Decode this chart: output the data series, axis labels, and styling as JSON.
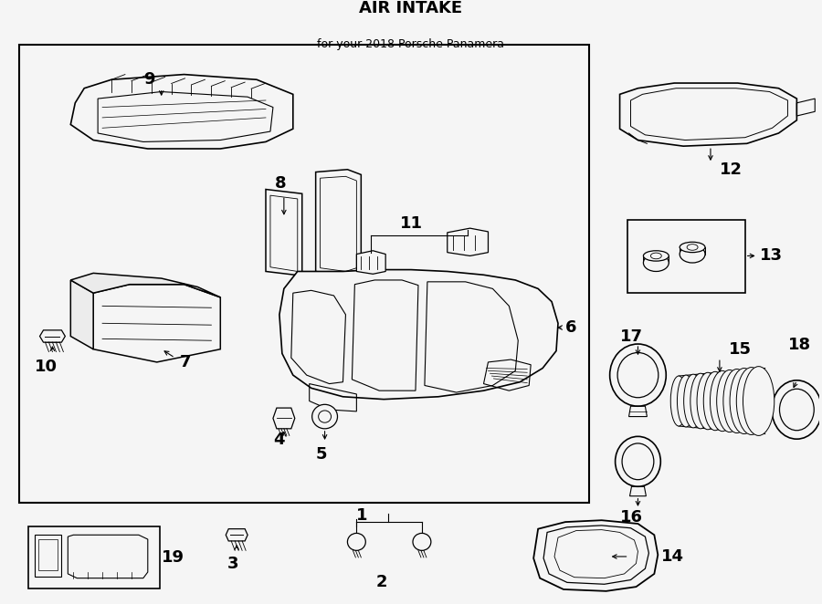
{
  "title": "AIR INTAKE",
  "subtitle": "for your 2018 Porsche Panamera",
  "bg_color": "#f5f5f5",
  "fig_width": 9.0,
  "fig_height": 6.62,
  "dpi": 100
}
